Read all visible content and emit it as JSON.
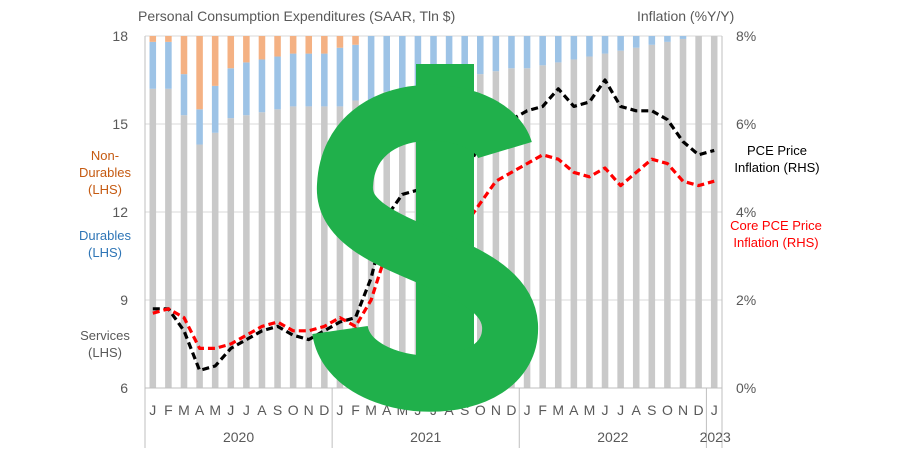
{
  "chart_data": {
    "type": "bar",
    "title_left": "Personal Consumption Expenditures (SAAR, Tln $)",
    "title_right": "Inflation (%Y/Y)",
    "left_axis": {
      "range": [
        6,
        18
      ],
      "ticks": [
        "6",
        "9",
        "12",
        "15",
        "18"
      ]
    },
    "right_axis": {
      "range": [
        0,
        8
      ],
      "ticks": [
        "0%",
        "2%",
        "4%",
        "6%",
        "8%"
      ]
    },
    "months": [
      "J",
      "F",
      "M",
      "A",
      "M",
      "J",
      "J",
      "A",
      "S",
      "O",
      "N",
      "D",
      "J",
      "F",
      "M",
      "A",
      "M",
      "J",
      "J",
      "A",
      "S",
      "O",
      "N",
      "D",
      "J",
      "F",
      "M",
      "A",
      "M",
      "J",
      "J",
      "A",
      "S",
      "O",
      "N",
      "D",
      "J"
    ],
    "years": [
      "2020",
      "2021",
      "2022",
      "2023"
    ],
    "series": [
      {
        "name": "Services (LHS)",
        "label_lines": [
          "Services",
          "(LHS)"
        ],
        "color": "#C9C9C9",
        "values": [
          10.2,
          10.2,
          9.3,
          8.3,
          8.7,
          9.2,
          9.3,
          9.4,
          9.5,
          9.6,
          9.6,
          9.6,
          9.6,
          9.8,
          9.8,
          10.1,
          10.2,
          10.3,
          10.5,
          10.6,
          10.7,
          10.7,
          10.8,
          10.9,
          10.9,
          11.0,
          11.1,
          11.2,
          11.3,
          11.4,
          11.5,
          11.6,
          11.7,
          11.8,
          11.9,
          12.0,
          12.1
        ]
      },
      {
        "name": "Durables (LHS)",
        "label_lines": [
          "Durables",
          "(LHS)"
        ],
        "color": "#9DC3E6",
        "values": [
          1.6,
          1.6,
          1.4,
          1.2,
          1.6,
          1.7,
          1.8,
          1.8,
          1.8,
          1.8,
          1.8,
          1.8,
          2.0,
          1.9,
          2.2,
          2.2,
          2.1,
          2.1,
          2.1,
          2.0,
          2.0,
          2.1,
          2.2,
          2.0,
          2.2,
          2.1,
          2.1,
          2.1,
          2.1,
          2.1,
          2.1,
          2.1,
          2.1,
          2.1,
          2.1,
          2.0,
          2.2
        ]
      },
      {
        "name": "Non-Durables (LHS)",
        "label_lines": [
          "Non-",
          "Durables",
          "(LHS)"
        ],
        "color": "#F4B183",
        "values": [
          2.8,
          2.8,
          2.6,
          2.5,
          2.8,
          3.1,
          3.1,
          3.1,
          3.3,
          3.3,
          3.2,
          3.2,
          3.3,
          3.3,
          3.6,
          3.6,
          3.6,
          3.7,
          3.6,
          3.6,
          3.6,
          3.6,
          3.7,
          3.6,
          3.6,
          3.6,
          3.7,
          3.8,
          3.7,
          3.8,
          3.8,
          3.7,
          3.8,
          3.8,
          3.8,
          3.7,
          3.7
        ]
      },
      {
        "name": "PCE Price Inflation (RHS)",
        "label_lines": [
          "PCE Price",
          "Inflation (RHS)"
        ],
        "color": "#000000",
        "values": [
          1.8,
          1.8,
          1.3,
          0.4,
          0.5,
          0.9,
          1.1,
          1.3,
          1.4,
          1.2,
          1.1,
          1.3,
          1.5,
          1.6,
          2.5,
          3.9,
          4.4,
          4.5,
          4.5,
          4.6,
          4.8,
          5.6,
          5.9,
          6.1,
          6.3,
          6.4,
          6.8,
          6.4,
          6.5,
          7.0,
          6.4,
          6.3,
          6.3,
          6.1,
          5.6,
          5.3,
          5.4
        ]
      },
      {
        "name": "Core PCE Price Inflation (RHS)",
        "label_lines": [
          "Core PCE Price",
          "Inflation (RHS)"
        ],
        "color": "#FF0000",
        "values": [
          1.7,
          1.8,
          1.6,
          0.9,
          0.9,
          1.0,
          1.2,
          1.4,
          1.5,
          1.3,
          1.3,
          1.4,
          1.6,
          1.4,
          2.0,
          3.1,
          3.5,
          3.6,
          3.6,
          3.6,
          3.7,
          4.2,
          4.7,
          4.9,
          5.1,
          5.3,
          5.2,
          4.9,
          4.8,
          5.0,
          4.6,
          4.9,
          5.2,
          5.1,
          4.7,
          4.6,
          4.7
        ]
      }
    ],
    "overlay": {
      "symbol": "$",
      "color": "#20B04B"
    }
  }
}
